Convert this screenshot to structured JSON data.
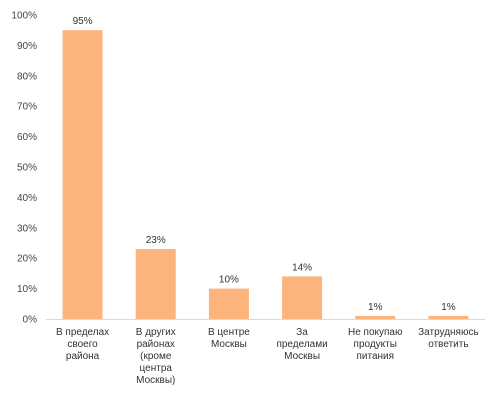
{
  "chart_data": {
    "type": "bar",
    "title": "",
    "xlabel": "",
    "ylabel": "",
    "ylim": [
      0,
      100
    ],
    "yticks": [
      "0%",
      "10%",
      "20%",
      "30%",
      "40%",
      "50%",
      "60%",
      "70%",
      "80%",
      "90%",
      "100%"
    ],
    "grid": false,
    "legend": "none",
    "bar_color": "#FDB37C",
    "categories": [
      [
        "В пределах",
        "своего",
        "района"
      ],
      [
        "В других",
        "районах",
        "(кроме",
        "центра",
        "Москвы)"
      ],
      [
        "В центре",
        "Москвы"
      ],
      [
        "За",
        "пределами",
        "Москвы"
      ],
      [
        "Не покупаю",
        "продукты",
        "питания"
      ],
      [
        "Затрудняюсь",
        "ответить"
      ]
    ],
    "values": [
      95,
      23,
      10,
      14,
      1,
      1
    ],
    "data_labels": [
      "95%",
      "23%",
      "10%",
      "14%",
      "1%",
      "1%"
    ]
  }
}
